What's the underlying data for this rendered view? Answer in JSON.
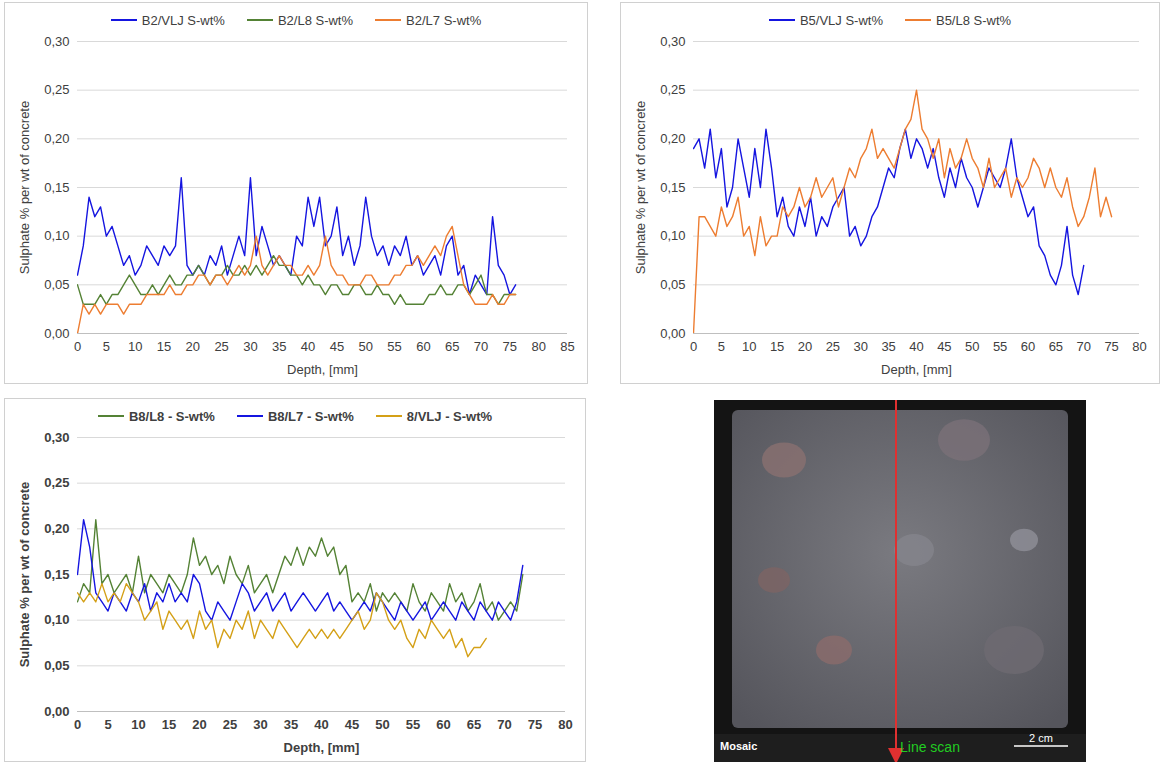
{
  "chart_data": [
    {
      "type": "line",
      "x_label": "Depth, [mm]",
      "y_label": "Sulphate % per wt of concrete",
      "xlim": [
        0,
        85
      ],
      "xticks": [
        0,
        5,
        10,
        15,
        20,
        25,
        30,
        35,
        40,
        45,
        50,
        55,
        60,
        65,
        70,
        75,
        80,
        85
      ],
      "ylim": [
        0,
        0.3
      ],
      "yticks": [
        {
          "value": 0,
          "label": "0,00"
        },
        {
          "value": 0.05,
          "label": "0,05"
        },
        {
          "value": 0.1,
          "label": "0,10"
        },
        {
          "value": 0.15,
          "label": "0,15"
        },
        {
          "value": 0.2,
          "label": "0,20"
        },
        {
          "value": 0.25,
          "label": "0,25"
        },
        {
          "value": 0.3,
          "label": "0,30"
        }
      ],
      "grid": true,
      "legend": "top",
      "x": [
        0,
        1,
        2,
        3,
        4,
        5,
        6,
        7,
        8,
        9,
        10,
        11,
        12,
        13,
        14,
        15,
        16,
        17,
        18,
        19,
        20,
        21,
        22,
        23,
        24,
        25,
        26,
        27,
        28,
        29,
        30,
        31,
        32,
        33,
        34,
        35,
        36,
        37,
        38,
        39,
        40,
        41,
        42,
        43,
        44,
        45,
        46,
        47,
        48,
        49,
        50,
        51,
        52,
        53,
        54,
        55,
        56,
        57,
        58,
        59,
        60,
        61,
        62,
        63,
        64,
        65,
        66,
        67,
        68,
        69,
        70,
        71,
        72,
        73,
        74,
        75,
        76
      ],
      "series": [
        {
          "name": "B2/VLJ S-wt%",
          "color": "#1515e0",
          "values": [
            0.06,
            0.09,
            0.14,
            0.12,
            0.13,
            0.1,
            0.11,
            0.09,
            0.07,
            0.08,
            0.06,
            0.07,
            0.09,
            0.08,
            0.07,
            0.09,
            0.08,
            0.09,
            0.16,
            0.07,
            0.06,
            0.07,
            0.06,
            0.08,
            0.07,
            0.09,
            0.06,
            0.08,
            0.1,
            0.08,
            0.16,
            0.08,
            0.11,
            0.09,
            0.07,
            0.08,
            0.07,
            0.06,
            0.1,
            0.09,
            0.14,
            0.11,
            0.14,
            0.09,
            0.1,
            0.13,
            0.08,
            0.1,
            0.07,
            0.09,
            0.14,
            0.1,
            0.08,
            0.09,
            0.07,
            0.09,
            0.08,
            0.1,
            0.07,
            0.08,
            0.06,
            0.07,
            0.08,
            0.06,
            0.09,
            0.1,
            0.06,
            0.07,
            0.04,
            0.06,
            0.05,
            0.04,
            0.12,
            0.07,
            0.06,
            0.04,
            0.05
          ]
        },
        {
          "name": "B2/L8 S-wt%",
          "color": "#548235",
          "values": [
            0.05,
            0.03,
            0.03,
            0.03,
            0.04,
            0.03,
            0.04,
            0.04,
            0.05,
            0.06,
            0.05,
            0.04,
            0.04,
            0.05,
            0.04,
            0.05,
            0.06,
            0.05,
            0.05,
            0.06,
            0.06,
            0.07,
            0.06,
            0.05,
            0.06,
            0.06,
            0.07,
            0.06,
            0.06,
            0.07,
            0.06,
            0.07,
            0.06,
            0.07,
            0.08,
            0.07,
            0.07,
            0.06,
            0.06,
            0.05,
            0.06,
            0.05,
            0.05,
            0.04,
            0.05,
            0.05,
            0.04,
            0.04,
            0.05,
            0.05,
            0.04,
            0.04,
            0.05,
            0.04,
            0.04,
            0.03,
            0.04,
            0.03,
            0.03,
            0.03,
            0.03,
            0.04,
            0.04,
            0.05,
            0.04,
            0.04,
            0.05,
            0.05,
            0.04,
            0.05,
            0.06,
            0.04,
            0.04,
            0.03,
            0.04,
            0.04,
            0.04
          ]
        },
        {
          "name": "B2/L7 S-wt%",
          "color": "#ed7d31",
          "values": [
            0.0,
            0.03,
            0.02,
            0.03,
            0.02,
            0.03,
            0.03,
            0.03,
            0.02,
            0.03,
            0.03,
            0.03,
            0.04,
            0.04,
            0.04,
            0.04,
            0.05,
            0.04,
            0.04,
            0.05,
            0.05,
            0.06,
            0.06,
            0.05,
            0.06,
            0.06,
            0.05,
            0.06,
            0.07,
            0.06,
            0.07,
            0.1,
            0.07,
            0.06,
            0.07,
            0.08,
            0.07,
            0.07,
            0.06,
            0.06,
            0.07,
            0.06,
            0.07,
            0.1,
            0.07,
            0.06,
            0.06,
            0.05,
            0.05,
            0.05,
            0.06,
            0.06,
            0.05,
            0.05,
            0.05,
            0.06,
            0.06,
            0.07,
            0.07,
            0.08,
            0.07,
            0.08,
            0.09,
            0.08,
            0.1,
            0.11,
            0.08,
            0.05,
            0.04,
            0.03,
            0.03,
            0.03,
            0.04,
            0.03,
            0.03,
            0.04,
            0.04
          ]
        }
      ]
    },
    {
      "type": "line",
      "x_label": "Depth, [mm]",
      "y_label": "Sulphate % per wt of concrete",
      "xlim": [
        0,
        80
      ],
      "xticks": [
        0,
        5,
        10,
        15,
        20,
        25,
        30,
        35,
        40,
        45,
        50,
        55,
        60,
        65,
        70,
        75,
        80
      ],
      "ylim": [
        0,
        0.3
      ],
      "yticks": [
        {
          "value": 0,
          "label": "0,00"
        },
        {
          "value": 0.05,
          "label": "0,05"
        },
        {
          "value": 0.1,
          "label": "0,10"
        },
        {
          "value": 0.15,
          "label": "0,15"
        },
        {
          "value": 0.2,
          "label": "0,20"
        },
        {
          "value": 0.25,
          "label": "0,25"
        },
        {
          "value": 0.3,
          "label": "0,30"
        }
      ],
      "grid": true,
      "legend": "top",
      "x": [
        0,
        1,
        2,
        3,
        4,
        5,
        6,
        7,
        8,
        9,
        10,
        11,
        12,
        13,
        14,
        15,
        16,
        17,
        18,
        19,
        20,
        21,
        22,
        23,
        24,
        25,
        26,
        27,
        28,
        29,
        30,
        31,
        32,
        33,
        34,
        35,
        36,
        37,
        38,
        39,
        40,
        41,
        42,
        43,
        44,
        45,
        46,
        47,
        48,
        49,
        50,
        51,
        52,
        53,
        54,
        55,
        56,
        57,
        58,
        59,
        60,
        61,
        62,
        63,
        64,
        65,
        66,
        67,
        68,
        69,
        70,
        71,
        72,
        73,
        74,
        75
      ],
      "series": [
        {
          "name": "B5/VLJ S-wt%",
          "color": "#1515e0",
          "values": [
            0.19,
            0.2,
            0.17,
            0.21,
            0.16,
            0.19,
            0.13,
            0.15,
            0.2,
            0.17,
            0.14,
            0.19,
            0.15,
            0.21,
            0.17,
            0.12,
            0.14,
            0.11,
            0.1,
            0.13,
            0.11,
            0.14,
            0.1,
            0.12,
            0.11,
            0.13,
            0.14,
            0.15,
            0.1,
            0.11,
            0.09,
            0.1,
            0.12,
            0.13,
            0.15,
            0.17,
            0.16,
            0.19,
            0.21,
            0.18,
            0.2,
            0.19,
            0.17,
            0.19,
            0.16,
            0.14,
            0.17,
            0.15,
            0.18,
            0.16,
            0.15,
            0.13,
            0.15,
            0.17,
            0.16,
            0.15,
            0.17,
            0.2,
            0.16,
            0.14,
            0.12,
            0.13,
            0.09,
            0.08,
            0.06,
            0.05,
            0.07,
            0.11,
            0.06,
            0.04,
            0.07,
            null,
            null,
            null,
            null,
            null
          ]
        },
        {
          "name": "B5/L8 S-wt%",
          "color": "#ed7d31",
          "values": [
            0.0,
            0.12,
            0.12,
            0.11,
            0.1,
            0.13,
            0.11,
            0.12,
            0.14,
            0.1,
            0.11,
            0.08,
            0.12,
            0.09,
            0.1,
            0.1,
            0.13,
            0.12,
            0.13,
            0.15,
            0.13,
            0.14,
            0.16,
            0.14,
            0.15,
            0.16,
            0.13,
            0.15,
            0.17,
            0.16,
            0.18,
            0.19,
            0.21,
            0.18,
            0.19,
            0.18,
            0.17,
            0.19,
            0.21,
            0.22,
            0.25,
            0.21,
            0.2,
            0.18,
            0.2,
            0.16,
            0.19,
            0.17,
            0.18,
            0.2,
            0.18,
            0.17,
            0.15,
            0.18,
            0.15,
            0.16,
            0.17,
            0.14,
            0.16,
            0.15,
            0.16,
            0.18,
            0.17,
            0.15,
            0.17,
            0.15,
            0.14,
            0.16,
            0.13,
            0.11,
            0.12,
            0.14,
            0.17,
            0.12,
            0.14,
            0.12
          ]
        }
      ]
    },
    {
      "type": "line",
      "x_label": "Depth, [mm]",
      "y_label": "Sulphate % per wt of concrete",
      "xlim": [
        0,
        80
      ],
      "xticks": [
        0,
        5,
        10,
        15,
        20,
        25,
        30,
        35,
        40,
        45,
        50,
        55,
        60,
        65,
        70,
        75,
        80
      ],
      "ylim": [
        0,
        0.3
      ],
      "yticks": [
        {
          "value": 0,
          "label": "0,00"
        },
        {
          "value": 0.05,
          "label": "0,05"
        },
        {
          "value": 0.1,
          "label": "0,10"
        },
        {
          "value": 0.15,
          "label": "0,15"
        },
        {
          "value": 0.2,
          "label": "0,20"
        },
        {
          "value": 0.25,
          "label": "0,25"
        },
        {
          "value": 0.3,
          "label": "0,30"
        }
      ],
      "grid": true,
      "legend": "top",
      "x": [
        0,
        1,
        2,
        3,
        4,
        5,
        6,
        7,
        8,
        9,
        10,
        11,
        12,
        13,
        14,
        15,
        16,
        17,
        18,
        19,
        20,
        21,
        22,
        23,
        24,
        25,
        26,
        27,
        28,
        29,
        30,
        31,
        32,
        33,
        34,
        35,
        36,
        37,
        38,
        39,
        40,
        41,
        42,
        43,
        44,
        45,
        46,
        47,
        48,
        49,
        50,
        51,
        52,
        53,
        54,
        55,
        56,
        57,
        58,
        59,
        60,
        61,
        62,
        63,
        64,
        65,
        66,
        67,
        68,
        69,
        70,
        71,
        72,
        73
      ],
      "series": [
        {
          "name": "B8/L8 - S-wt%",
          "color": "#548235",
          "values": [
            0.12,
            0.14,
            0.13,
            0.21,
            0.14,
            0.15,
            0.13,
            0.14,
            0.15,
            0.13,
            0.17,
            0.13,
            0.15,
            0.14,
            0.13,
            0.15,
            0.14,
            0.13,
            0.15,
            0.19,
            0.16,
            0.17,
            0.15,
            0.16,
            0.14,
            0.17,
            0.15,
            0.14,
            0.16,
            0.13,
            0.14,
            0.15,
            0.13,
            0.15,
            0.17,
            0.16,
            0.18,
            0.16,
            0.18,
            0.17,
            0.19,
            0.17,
            0.18,
            0.15,
            0.16,
            0.12,
            0.13,
            0.12,
            0.14,
            0.11,
            0.13,
            0.12,
            0.13,
            0.12,
            0.11,
            0.14,
            0.12,
            0.11,
            0.13,
            0.12,
            0.11,
            0.14,
            0.12,
            0.13,
            0.11,
            0.12,
            0.14,
            0.11,
            0.12,
            0.1,
            0.11,
            0.12,
            0.11,
            0.15
          ]
        },
        {
          "name": "B8/L7 - S-wt%",
          "color": "#1515e0",
          "values": [
            0.15,
            0.21,
            0.18,
            0.13,
            0.12,
            0.11,
            0.13,
            0.12,
            0.11,
            0.13,
            0.12,
            0.14,
            0.11,
            0.13,
            0.12,
            0.14,
            0.12,
            0.13,
            0.12,
            0.15,
            0.14,
            0.11,
            0.1,
            0.12,
            0.11,
            0.1,
            0.12,
            0.14,
            0.13,
            0.11,
            0.12,
            0.13,
            0.11,
            0.12,
            0.13,
            0.11,
            0.12,
            0.13,
            0.12,
            0.11,
            0.12,
            0.13,
            0.11,
            0.12,
            0.11,
            0.1,
            0.11,
            0.12,
            0.11,
            0.13,
            0.12,
            0.11,
            0.1,
            0.12,
            0.11,
            0.1,
            0.11,
            0.12,
            0.1,
            0.11,
            0.12,
            0.11,
            0.1,
            0.12,
            0.11,
            0.1,
            0.12,
            0.11,
            0.1,
            0.12,
            0.11,
            0.1,
            0.12,
            0.16
          ]
        },
        {
          "name": "8/VLJ - S-wt%",
          "color": "#d4a017",
          "values": [
            0.13,
            0.12,
            0.13,
            0.12,
            0.14,
            0.12,
            0.13,
            0.12,
            0.14,
            0.13,
            0.12,
            0.1,
            0.11,
            0.12,
            0.09,
            0.11,
            0.1,
            0.09,
            0.1,
            0.08,
            0.11,
            0.09,
            0.1,
            0.07,
            0.09,
            0.08,
            0.1,
            0.09,
            0.11,
            0.08,
            0.1,
            0.09,
            0.08,
            0.1,
            0.09,
            0.08,
            0.07,
            0.08,
            0.09,
            0.08,
            0.09,
            0.08,
            0.09,
            0.08,
            0.09,
            0.1,
            0.11,
            0.09,
            0.1,
            0.13,
            0.12,
            0.1,
            0.09,
            0.1,
            0.08,
            0.07,
            0.09,
            0.08,
            0.1,
            0.09,
            0.08,
            0.09,
            0.07,
            0.08,
            0.06,
            0.07,
            0.07,
            0.08,
            null,
            null,
            null,
            null,
            null,
            null
          ]
        }
      ]
    }
  ],
  "image": {
    "corner_label": "Mosaic",
    "line_label": "Line scan",
    "scale_label": "2 cm"
  }
}
